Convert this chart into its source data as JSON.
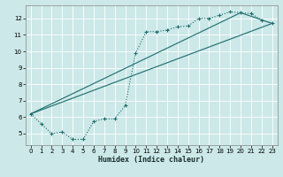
{
  "xlabel": "Humidex (Indice chaleur)",
  "bg_color": "#cce8e8",
  "grid_color": "#b0d0d0",
  "line_color": "#1a6b6b",
  "xlim": [
    -0.5,
    23.5
  ],
  "ylim": [
    4.3,
    12.8
  ],
  "xticks": [
    0,
    1,
    2,
    3,
    4,
    5,
    6,
    7,
    8,
    9,
    10,
    11,
    12,
    13,
    14,
    15,
    16,
    17,
    18,
    19,
    20,
    21,
    22,
    23
  ],
  "yticks": [
    5,
    6,
    7,
    8,
    9,
    10,
    11,
    12
  ],
  "line1_x": [
    0,
    1,
    2,
    3,
    4,
    5,
    6,
    7,
    8,
    9,
    10,
    11,
    12,
    13,
    14,
    15,
    16,
    17,
    18,
    19,
    20,
    21,
    22,
    23
  ],
  "line1_y": [
    6.2,
    5.6,
    5.0,
    5.1,
    4.65,
    4.65,
    5.75,
    5.9,
    5.9,
    6.7,
    9.9,
    11.2,
    11.2,
    11.3,
    11.5,
    11.55,
    12.0,
    12.0,
    12.2,
    12.4,
    12.35,
    12.3,
    11.9,
    11.7
  ],
  "line2_x": [
    0,
    23
  ],
  "line2_y": [
    6.2,
    11.7
  ],
  "line3_x": [
    0,
    20,
    23
  ],
  "line3_y": [
    6.2,
    12.35,
    11.7
  ]
}
